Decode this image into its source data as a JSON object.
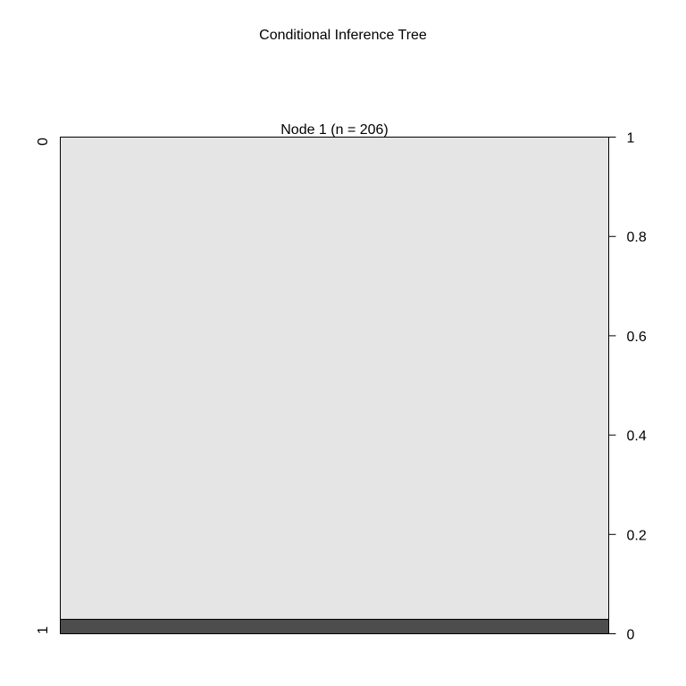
{
  "chart_data": {
    "type": "bar",
    "title": "Conditional Inference Tree",
    "node_label": "Node 1 (n = 206)",
    "categories": [
      "0",
      "1"
    ],
    "values": [
      0.971,
      0.029
    ],
    "ylim": [
      0,
      1
    ],
    "yticks": [
      "0",
      "0.2",
      "0.4",
      "0.6",
      "0.8",
      "1"
    ],
    "grid": false,
    "colors": {
      "0": "#e5e5e5",
      "1": "#4d4d4d"
    }
  }
}
